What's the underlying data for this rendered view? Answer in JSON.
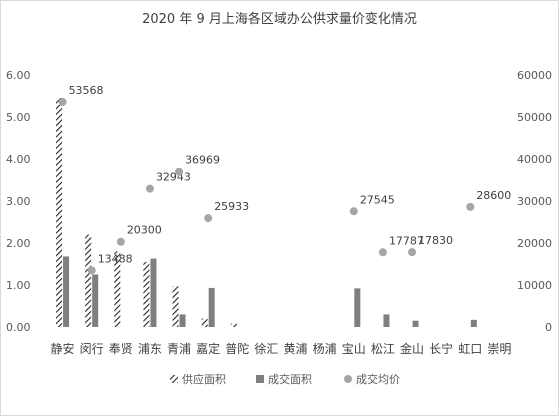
{
  "chart_data": {
    "type": "bar",
    "title": "2020 年 9 月上海各区域办公供求量价变化情况",
    "categories": [
      "静安",
      "闵行",
      "奉贤",
      "浦东",
      "青浦",
      "嘉定",
      "普陀",
      "徐汇",
      "黄浦",
      "杨浦",
      "宝山",
      "松江",
      "金山",
      "长宁",
      "虹口",
      "崇明"
    ],
    "left_axis": {
      "min": 0,
      "max": 6,
      "ticks": [
        "0.00",
        "1.00",
        "2.00",
        "3.00",
        "4.00",
        "5.00",
        "6.00"
      ]
    },
    "right_axis": {
      "min": 0,
      "max": 60000,
      "ticks": [
        "0",
        "10000",
        "20000",
        "30000",
        "40000",
        "50000",
        "60000"
      ]
    },
    "series": [
      {
        "name": "供应面积",
        "kind": "bar-hatched",
        "axis": "left",
        "color": "#404040",
        "values": [
          5.45,
          2.2,
          1.8,
          1.55,
          0.97,
          0.2,
          0.08,
          0,
          0,
          0,
          0,
          0,
          0,
          0,
          0,
          0
        ]
      },
      {
        "name": "成交面积",
        "kind": "bar",
        "axis": "left",
        "color": "#7f7f7f",
        "values": [
          1.68,
          1.25,
          0,
          1.63,
          0.3,
          0.93,
          0,
          0,
          0,
          0,
          0.92,
          0.3,
          0.15,
          0,
          0.17,
          0
        ]
      },
      {
        "name": "成交均价",
        "kind": "scatter",
        "axis": "right",
        "color": "#a6a6a6",
        "values": [
          53568,
          13488,
          20300,
          32943,
          36969,
          25933,
          null,
          null,
          null,
          null,
          27545,
          17787,
          17830,
          null,
          28600,
          null
        ],
        "labels": [
          "53568",
          "13488",
          "20300",
          "32943",
          "36969",
          "25933",
          "",
          "",
          "",
          "",
          "27545",
          "17787",
          "17830",
          "",
          "28600",
          ""
        ]
      }
    ],
    "legend": [
      "供应面积",
      "成交面积",
      "成交均价"
    ],
    "legend_position": "bottom",
    "grid": false
  }
}
